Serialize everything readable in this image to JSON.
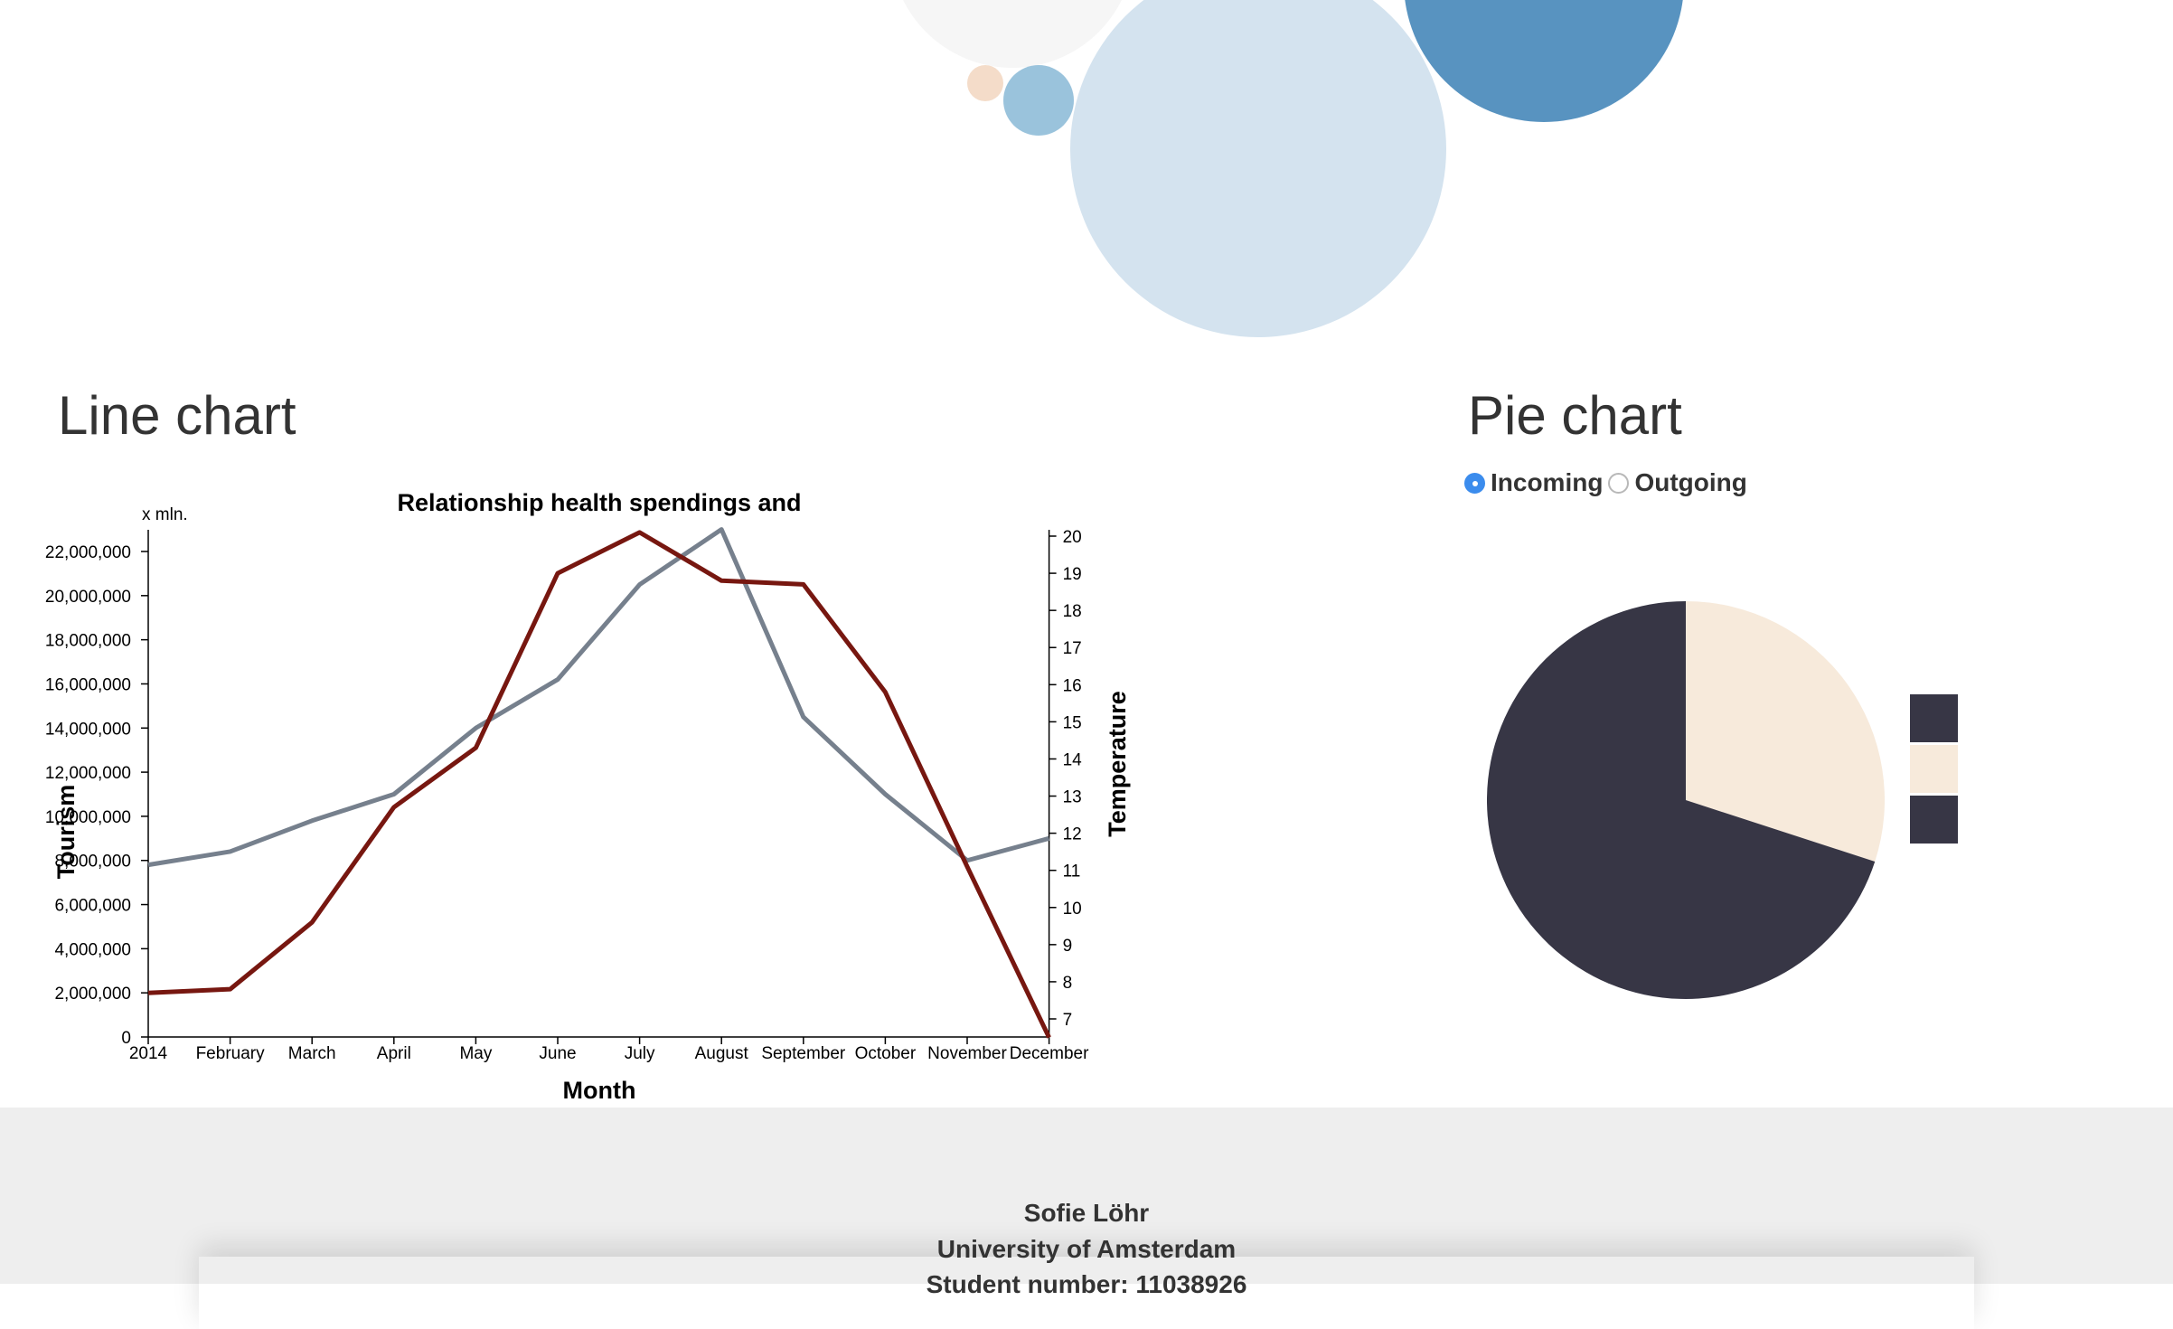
{
  "bubble_colors": [
    "#f6f6f6",
    "#f4dcc9",
    "#9ac3dc",
    "#d4e3ef",
    "#5893c0"
  ],
  "sections": {
    "line_title": "Line chart",
    "pie_title": "Pie chart"
  },
  "radios": [
    {
      "label": "Incoming",
      "checked": true
    },
    {
      "label": "Outgoing",
      "checked": false
    }
  ],
  "chart_data": [
    {
      "type": "line",
      "title": "Relationship health spendings and",
      "xlabel": "Month",
      "ylabel_left": "Tourism",
      "ylabel_right": "Temperature",
      "unit_left": "x mln.",
      "categories": [
        "2014",
        "February",
        "March",
        "April",
        "May",
        "June",
        "July",
        "August",
        "September",
        "October",
        "November",
        "December"
      ],
      "left_ticks": [
        "0",
        "2,000,000",
        "4,000,000",
        "6,000,000",
        "8,000,000",
        "10,000,000",
        "12,000,000",
        "14,000,000",
        "16,000,000",
        "18,000,000",
        "20,000,000",
        "22,000,000"
      ],
      "right_ticks": [
        "7",
        "8",
        "9",
        "10",
        "11",
        "12",
        "13",
        "14",
        "15",
        "16",
        "17",
        "18",
        "19",
        "20"
      ],
      "ylim_left": [
        0,
        22000000
      ],
      "ylim_right": [
        6.5,
        20.2
      ],
      "series": [
        {
          "axis": "left",
          "color": "#76808d",
          "values": [
            7800000,
            8400000,
            9800000,
            11000000,
            14000000,
            16200000,
            20500000,
            23000000,
            14500000,
            11000000,
            8000000,
            9000000
          ]
        },
        {
          "axis": "right",
          "color": "#771710",
          "values": [
            7.7,
            7.8,
            9.6,
            12.7,
            14.3,
            19.0,
            20.1,
            18.8,
            18.7,
            15.8,
            11.1,
            6.5
          ]
        }
      ]
    },
    {
      "type": "pie",
      "values": [
        30,
        70
      ],
      "colors": [
        "#f7eadb",
        "#373645"
      ],
      "legend_swatches": [
        "#373645",
        "#f7eadb",
        "#373645"
      ]
    }
  ],
  "footer": {
    "name": "Sofie Löhr",
    "university": "University of Amsterdam",
    "student_number": "Student number: 11038926"
  }
}
